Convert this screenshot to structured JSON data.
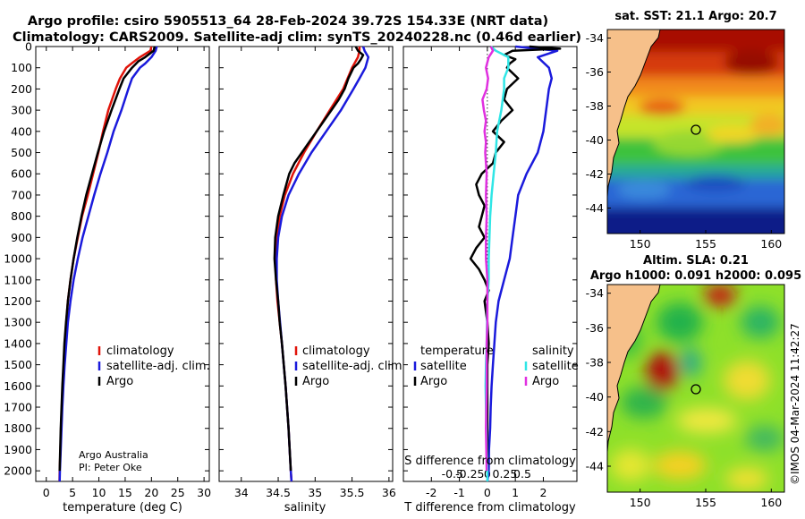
{
  "header": {
    "line1": "Argo profile: csiro 5905513_64 28-Feb-2024 39.72S 154.33E (NRT data)",
    "line2": "Climatology: CARS2009. Satellite-adj clim: synTS_20240228.nc (0.46d earlier)"
  },
  "colors": {
    "climatology": "#e0140a",
    "satellite_adj": "#1a1adc",
    "argo": "#000000",
    "sal_diff_sat": "#30e6e6",
    "sal_diff_argo": "#e030e0",
    "land": "#f6c08a",
    "ocean_cold": "#101a88"
  },
  "credit": {
    "line1": "Argo Australia",
    "line2": "PI: Peter Oke",
    "stamp": "©IMOS 04-Mar-2024 11:42:27"
  },
  "chart_data": [
    {
      "type": "line",
      "name": "temperature-profile",
      "xlabel": "temperature (deg C)",
      "ylabel": "",
      "xlim": [
        -2,
        31
      ],
      "ylim": [
        2050,
        0
      ],
      "xticks": [
        0,
        5,
        10,
        15,
        20,
        25,
        30
      ],
      "yticks": [
        0,
        100,
        200,
        300,
        400,
        500,
        600,
        700,
        800,
        900,
        1000,
        1100,
        1200,
        1300,
        1400,
        1500,
        1600,
        1700,
        1800,
        1900,
        2000
      ],
      "legend_position": "lower-right",
      "legend": [
        "climatology",
        "satellite-adj. clim.",
        "Argo"
      ],
      "series": [
        {
          "name": "climatology",
          "depth": [
            0,
            20,
            50,
            80,
            100,
            150,
            200,
            300,
            400,
            500,
            600,
            700,
            800,
            900,
            1000,
            1100,
            1200,
            1300,
            1400,
            1500,
            1600,
            1700,
            1800,
            1900,
            2000,
            2050
          ],
          "values": [
            20.0,
            19.8,
            17.8,
            16.2,
            15.2,
            14.0,
            13.2,
            11.8,
            10.8,
            9.9,
            8.9,
            7.9,
            6.8,
            6.0,
            5.2,
            4.6,
            4.1,
            3.8,
            3.5,
            3.3,
            3.1,
            2.95,
            2.8,
            2.7,
            2.55,
            2.5
          ]
        },
        {
          "name": "satellite-adj. clim.",
          "depth": [
            0,
            20,
            50,
            80,
            100,
            150,
            200,
            300,
            400,
            500,
            600,
            700,
            800,
            900,
            1000,
            1100,
            1200,
            1300,
            1400,
            1500,
            1600,
            1700,
            1800,
            1900,
            2000,
            2050
          ],
          "values": [
            21.0,
            20.8,
            20.0,
            18.8,
            17.8,
            16.3,
            15.6,
            14.3,
            12.8,
            11.6,
            10.3,
            9.1,
            8.0,
            6.9,
            6.0,
            5.2,
            4.6,
            4.1,
            3.8,
            3.5,
            3.25,
            3.05,
            2.9,
            2.75,
            2.6,
            2.55
          ]
        },
        {
          "name": "Argo",
          "depth": [
            0,
            20,
            50,
            70,
            100,
            150,
            200,
            300,
            400,
            500,
            600,
            700,
            800,
            900,
            1000,
            1100,
            1200,
            1300,
            1400,
            1500,
            1600,
            1700,
            1800,
            1900,
            2000
          ],
          "values": [
            20.6,
            20.4,
            18.8,
            17.5,
            16.3,
            14.7,
            13.9,
            12.4,
            11.0,
            9.8,
            8.7,
            7.6,
            6.7,
            5.9,
            5.2,
            4.6,
            4.1,
            3.75,
            3.45,
            3.25,
            3.05,
            2.9,
            2.75,
            2.65,
            2.55
          ]
        }
      ]
    },
    {
      "type": "line",
      "name": "salinity-profile",
      "xlabel": "salinity",
      "xlim": [
        33.7,
        36.05
      ],
      "ylim": [
        2050,
        0
      ],
      "xticks": [
        34,
        34.5,
        35,
        35.5,
        36
      ],
      "legend_position": "lower-right",
      "legend": [
        "climatology",
        "satellite-adj. clim.",
        "Argo"
      ],
      "series": [
        {
          "name": "climatology",
          "depth": [
            0,
            20,
            50,
            100,
            200,
            300,
            400,
            500,
            600,
            700,
            800,
            900,
            1000,
            1100,
            1200,
            1400,
            1600,
            1800,
            2000,
            2050
          ],
          "values": [
            35.6,
            35.6,
            35.58,
            35.5,
            35.38,
            35.2,
            35.02,
            34.85,
            34.7,
            34.59,
            34.52,
            34.48,
            34.47,
            34.47,
            34.49,
            34.55,
            34.6,
            34.64,
            34.67,
            34.68
          ]
        },
        {
          "name": "satellite-adj. clim.",
          "depth": [
            0,
            20,
            50,
            100,
            150,
            200,
            300,
            400,
            500,
            600,
            700,
            800,
            900,
            1000,
            1100,
            1200,
            1400,
            1600,
            1800,
            2000,
            2050
          ],
          "values": [
            35.65,
            35.67,
            35.72,
            35.68,
            35.6,
            35.52,
            35.35,
            35.15,
            34.95,
            34.78,
            34.64,
            34.55,
            34.5,
            34.48,
            34.48,
            34.5,
            34.55,
            34.6,
            34.64,
            34.67,
            34.68
          ]
        },
        {
          "name": "Argo",
          "depth": [
            0,
            20,
            40,
            60,
            80,
            100,
            150,
            200,
            250,
            300,
            350,
            400,
            450,
            500,
            550,
            600,
            700,
            800,
            900,
            1000,
            1100,
            1200,
            1300,
            1400,
            1600,
            1800,
            2000
          ],
          "values": [
            35.55,
            35.58,
            35.65,
            35.62,
            35.58,
            35.52,
            35.45,
            35.4,
            35.32,
            35.22,
            35.12,
            35.02,
            34.92,
            34.82,
            34.72,
            34.65,
            34.57,
            34.5,
            34.46,
            34.45,
            34.47,
            34.5,
            34.52,
            34.55,
            34.6,
            34.64,
            34.67
          ]
        }
      ]
    },
    {
      "type": "line",
      "name": "difference-from-climatology",
      "xlabel": "T difference from climatology",
      "xlabel_top": "S difference from climatology",
      "xlim": [
        -3,
        3.2
      ],
      "ylim": [
        2050,
        0
      ],
      "xticks": [
        -2,
        -1,
        0,
        1,
        2
      ],
      "sticks": [
        -0.5,
        -0.25,
        0,
        0.25,
        0.5
      ],
      "stick_labels": [
        "-0.5",
        "-0.25",
        "0",
        "0.25",
        "0.5"
      ],
      "s_scale": 2.5,
      "legend_position": "lower",
      "legend_temperature_title": "temperature",
      "legend_salinity_title": "salinity",
      "legend_temperature": [
        "satellite",
        "Argo"
      ],
      "legend_salinity": [
        "satellite",
        "Argo"
      ],
      "series": [
        {
          "name": "T satellite - clim",
          "depth": [
            0,
            20,
            50,
            100,
            150,
            200,
            300,
            400,
            500,
            600,
            700,
            800,
            900,
            1000,
            1100,
            1200,
            1300,
            1400,
            1500,
            1600,
            1700,
            1800,
            1900,
            2000,
            2050
          ],
          "values": [
            1.0,
            2.5,
            1.8,
            2.2,
            2.3,
            2.2,
            2.1,
            2.0,
            1.8,
            1.4,
            1.1,
            1.0,
            0.9,
            0.8,
            0.6,
            0.4,
            0.3,
            0.25,
            0.2,
            0.15,
            0.12,
            0.1,
            0.06,
            0.05,
            0.0
          ]
        },
        {
          "name": "T Argo - clim",
          "depth": [
            0,
            10,
            20,
            40,
            60,
            80,
            100,
            150,
            200,
            250,
            300,
            350,
            400,
            450,
            500,
            550,
            600,
            650,
            700,
            750,
            800,
            850,
            900,
            950,
            1000,
            1050,
            1100,
            1150,
            1200,
            1300,
            1400,
            1500,
            1600,
            1800,
            2000
          ],
          "values": [
            1.5,
            2.6,
            0.9,
            0.6,
            1.0,
            0.8,
            0.7,
            1.1,
            0.7,
            0.6,
            0.9,
            0.5,
            0.2,
            0.6,
            0.3,
            0.2,
            -0.2,
            -0.4,
            -0.3,
            -0.1,
            -0.2,
            -0.3,
            -0.1,
            -0.4,
            -0.6,
            -0.3,
            -0.1,
            0.05,
            -0.1,
            0.0,
            0.05,
            0.0,
            0.0,
            0.0,
            0.0
          ]
        },
        {
          "name": "S satellite - clim",
          "depth": [
            0,
            20,
            50,
            100,
            150,
            200,
            300,
            400,
            500,
            600,
            700,
            800,
            900,
            1000,
            1100,
            1200,
            1300,
            1400,
            1500,
            1600,
            1700,
            1800,
            1900,
            2000,
            2050
          ],
          "values": [
            0.05,
            0.12,
            0.3,
            0.3,
            0.24,
            0.24,
            0.2,
            0.14,
            0.12,
            0.09,
            0.06,
            0.04,
            0.03,
            0.02,
            0.02,
            0.0,
            -0.005,
            -0.01,
            -0.02,
            -0.025,
            -0.02,
            -0.015,
            -0.01,
            0.0,
            0.0
          ]
        },
        {
          "name": "S Argo - clim",
          "depth": [
            0,
            20,
            50,
            100,
            150,
            200,
            250,
            300,
            350,
            400,
            450,
            500,
            600,
            700,
            800,
            900,
            1000,
            1100,
            1200,
            1300,
            1400,
            1500,
            1600,
            1700,
            1800,
            1900,
            2000
          ],
          "values": [
            0.05,
            0.08,
            0.02,
            -0.02,
            0.01,
            -0.01,
            -0.07,
            -0.05,
            -0.02,
            -0.04,
            -0.02,
            -0.03,
            -0.01,
            -0.02,
            -0.01,
            -0.02,
            -0.02,
            0.0,
            0.0,
            0.0,
            -0.01,
            -0.01,
            -0.01,
            -0.015,
            -0.02,
            -0.015,
            -0.01
          ]
        }
      ]
    },
    {
      "type": "heatmap",
      "name": "sst-map",
      "title": "sat. SST: 21.1 Argo: 20.7",
      "xlim": [
        147.5,
        161
      ],
      "ylim": [
        -45.5,
        -33.5
      ],
      "xticks": [
        150,
        155,
        160
      ],
      "yticks": [
        -34,
        -36,
        -38,
        -40,
        -42,
        -44
      ],
      "argo_position": [
        154.33,
        -39.72
      ]
    },
    {
      "type": "heatmap",
      "name": "sla-map",
      "title_line1": "Altim. SLA: 0.21",
      "title_line2": "Argo h1000: 0.091 h2000: 0.095",
      "xlim": [
        147.5,
        161
      ],
      "ylim": [
        -45.5,
        -33.5
      ],
      "xticks": [
        150,
        155,
        160
      ],
      "yticks": [
        -34,
        -36,
        -38,
        -40,
        -42,
        -44
      ],
      "argo_position": [
        154.33,
        -39.72
      ]
    }
  ]
}
